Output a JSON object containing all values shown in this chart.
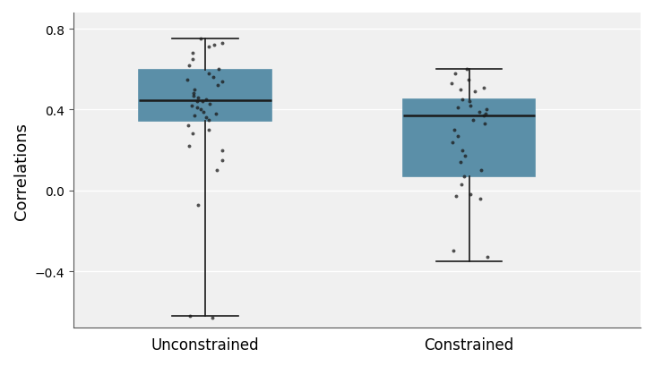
{
  "categories": [
    "Unconstrained",
    "Constrained"
  ],
  "ylabel": "Correlations",
  "ylim": [
    -0.68,
    0.88
  ],
  "yticks": [
    -0.4,
    0.0,
    0.4,
    0.8
  ],
  "box_color": "#F08080",
  "box_edge_color": "#5B8FA8",
  "median_color": "#1a1a1a",
  "whisker_color": "#1a1a1a",
  "dot_color": "#1a1a1a",
  "background_color": "#f0f0f0",
  "unconstrained": {
    "q1": 0.345,
    "median": 0.445,
    "q3": 0.595,
    "whisker_low": -0.62,
    "whisker_high": 0.75,
    "outliers": [],
    "points": [
      0.75,
      0.73,
      0.72,
      0.71,
      0.68,
      0.65,
      0.62,
      0.6,
      0.58,
      0.56,
      0.55,
      0.54,
      0.52,
      0.5,
      0.48,
      0.47,
      0.46,
      0.45,
      0.44,
      0.44,
      0.43,
      0.42,
      0.41,
      0.4,
      0.39,
      0.38,
      0.37,
      0.36,
      0.35,
      0.32,
      0.3,
      0.28,
      0.22,
      0.2,
      0.15,
      0.1,
      -0.07,
      -0.62,
      -0.63
    ]
  },
  "constrained": {
    "q1": 0.07,
    "median": 0.37,
    "q3": 0.45,
    "whisker_low": -0.35,
    "whisker_high": 0.6,
    "outliers": [],
    "points": [
      0.6,
      0.58,
      0.55,
      0.53,
      0.51,
      0.5,
      0.49,
      0.45,
      0.44,
      0.42,
      0.41,
      0.4,
      0.39,
      0.38,
      0.37,
      0.35,
      0.33,
      0.3,
      0.27,
      0.24,
      0.2,
      0.17,
      0.14,
      0.1,
      0.07,
      0.03,
      -0.02,
      -0.03,
      -0.04,
      -0.3,
      -0.33
    ]
  }
}
